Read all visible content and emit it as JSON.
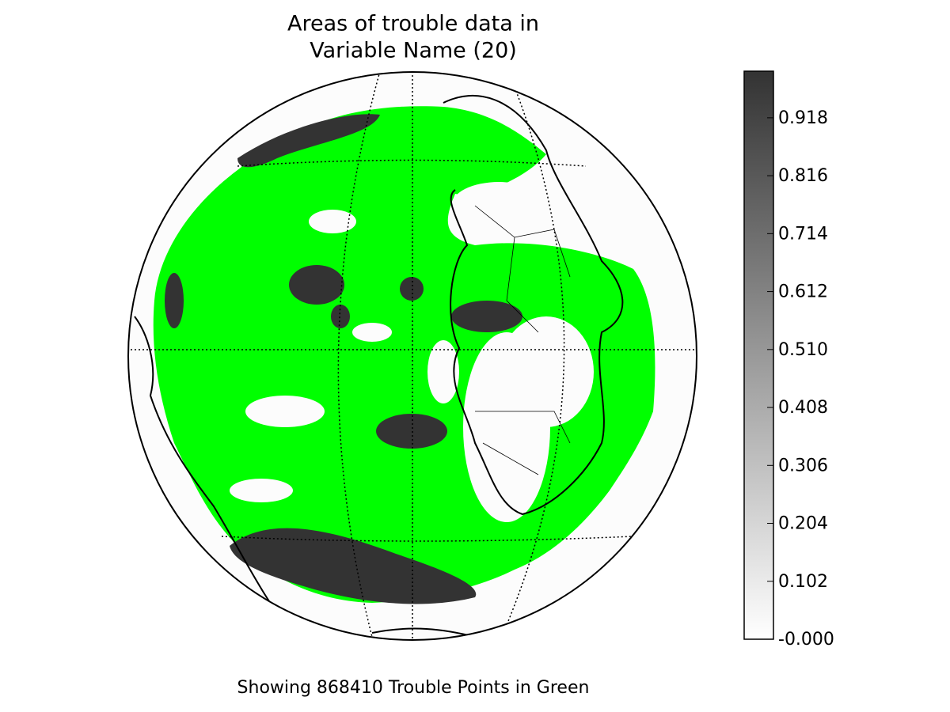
{
  "title_lines": [
    "Areas of trouble data in",
    "Variable Name (20)"
  ],
  "caption": "Showing 868410 Trouble Points in Green",
  "colorbar": {
    "lim": [
      0,
      1
    ],
    "ticks": [
      {
        "value": 0,
        "label": "-0.000"
      },
      0.102,
      0.204,
      0.306,
      0.408,
      {
        "value": 0.51,
        "label": "0.510"
      },
      0.612,
      0.714,
      0.816,
      0.918
    ],
    "color_low": "#ffffff",
    "color_high": "#333333"
  },
  "trouble_color": "#00ff00"
}
